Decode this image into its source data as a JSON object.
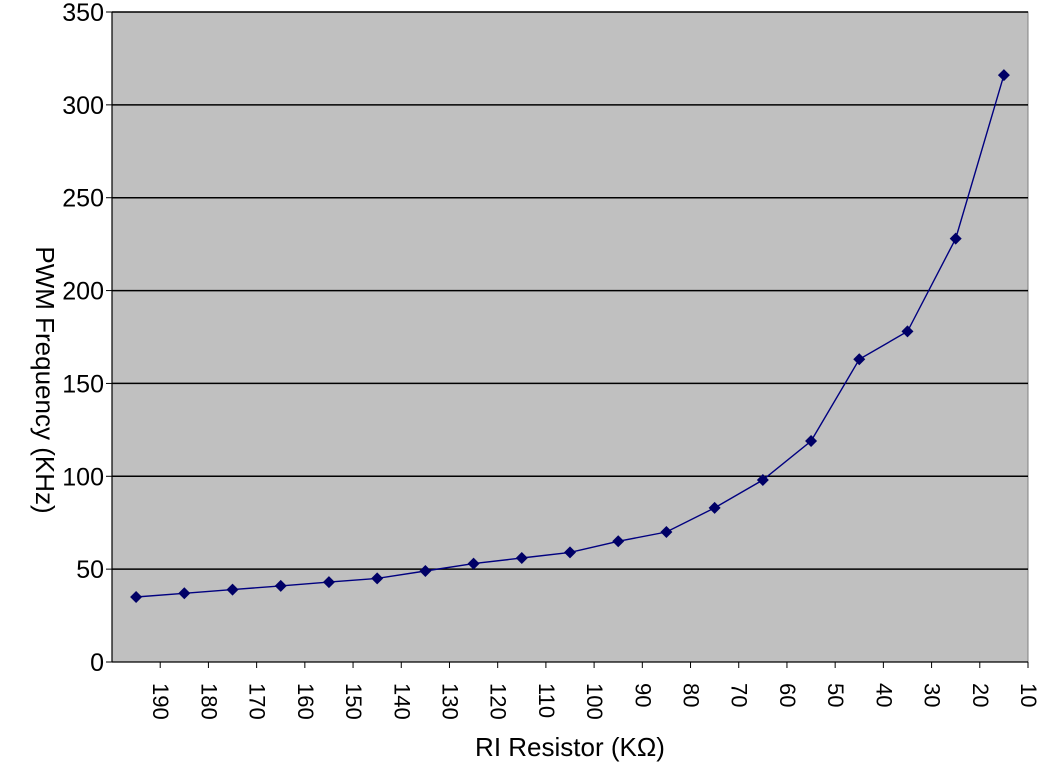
{
  "chart_data": {
    "type": "line",
    "xlabel": "RI Resistor (KΩ)",
    "ylabel": "PWM Frequency (KHz)",
    "ylim": [
      0,
      350
    ],
    "y_ticks": [
      0,
      50,
      100,
      150,
      200,
      250,
      300,
      350
    ],
    "x_tick_labels": [
      "190",
      "180",
      "170",
      "160",
      "150",
      "140",
      "130",
      "120",
      "110",
      "100",
      "90",
      "80",
      "70",
      "60",
      "50",
      "40",
      "30",
      "20",
      "10"
    ],
    "x_reversed": true,
    "grid": "horizontal",
    "legend": "none",
    "series": [
      {
        "x": [
          195,
          185,
          175,
          165,
          155,
          145,
          135,
          125,
          115,
          105,
          95,
          85,
          75,
          65,
          55,
          45,
          35,
          25,
          15
        ],
        "values": [
          35,
          37,
          39,
          41,
          43,
          45,
          49,
          53,
          56,
          59,
          65,
          70,
          83,
          98,
          119,
          163,
          178,
          228,
          316
        ],
        "color": "#000066"
      }
    ],
    "colors": {
      "plot_background": "#c0c0c0",
      "grid": "#000000",
      "line": "#000080",
      "marker": "#000066"
    }
  }
}
